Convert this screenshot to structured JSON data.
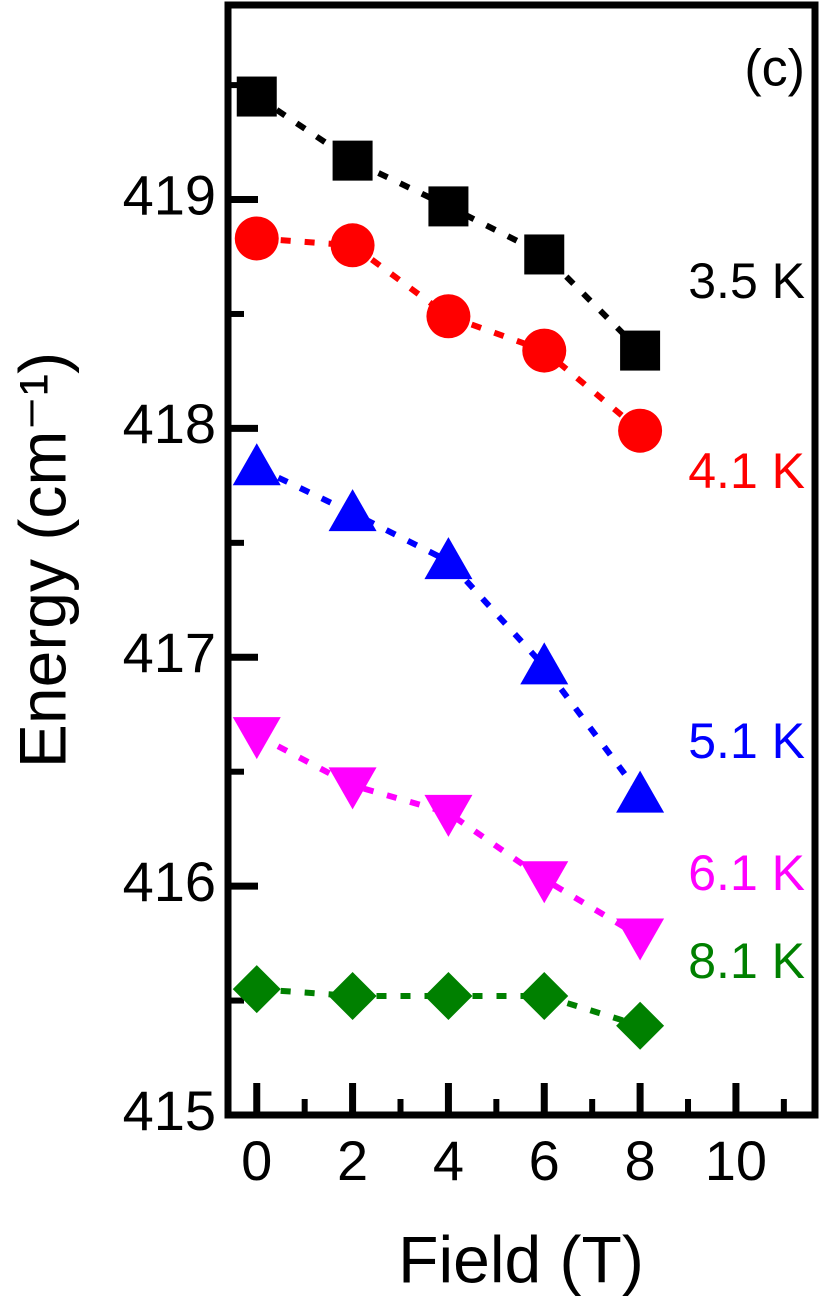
{
  "chart_data": {
    "type": "line",
    "panel_label": "(c)",
    "xlabel": "Field (T)",
    "ylabel": "Energy (cm⁻¹)",
    "x": [
      0,
      2,
      4,
      6,
      8
    ],
    "xlim": [
      -0.6,
      11.65
    ],
    "xticks": [
      0,
      2,
      4,
      6,
      8,
      10
    ],
    "xminorticks": [
      1,
      3,
      5,
      7,
      9,
      11
    ],
    "ylim": [
      415,
      419.85
    ],
    "yticks": [
      415,
      416,
      417,
      418,
      419
    ],
    "yminorticks": [
      415.5,
      416.5,
      417.5,
      418.5,
      419.5
    ],
    "series": [
      {
        "name": "3.5 K",
        "color": "#000000",
        "marker": "square",
        "values": [
          419.45,
          419.17,
          418.97,
          418.76,
          418.34
        ]
      },
      {
        "name": "4.1 K",
        "color": "#ff0000",
        "marker": "circle",
        "values": [
          418.83,
          418.8,
          418.49,
          418.34,
          417.99
        ]
      },
      {
        "name": "5.1 K",
        "color": "#0000ff",
        "marker": "triangle-up",
        "values": [
          417.83,
          417.63,
          417.42,
          416.96,
          416.4
        ]
      },
      {
        "name": "6.1 K",
        "color": "#ff00ff",
        "marker": "triangle-down",
        "values": [
          416.66,
          416.44,
          416.32,
          416.03,
          415.78
        ]
      },
      {
        "name": "8.1 K",
        "color": "#008000",
        "marker": "diamond",
        "values": [
          415.55,
          415.52,
          415.52,
          415.52,
          415.39
        ]
      }
    ]
  }
}
